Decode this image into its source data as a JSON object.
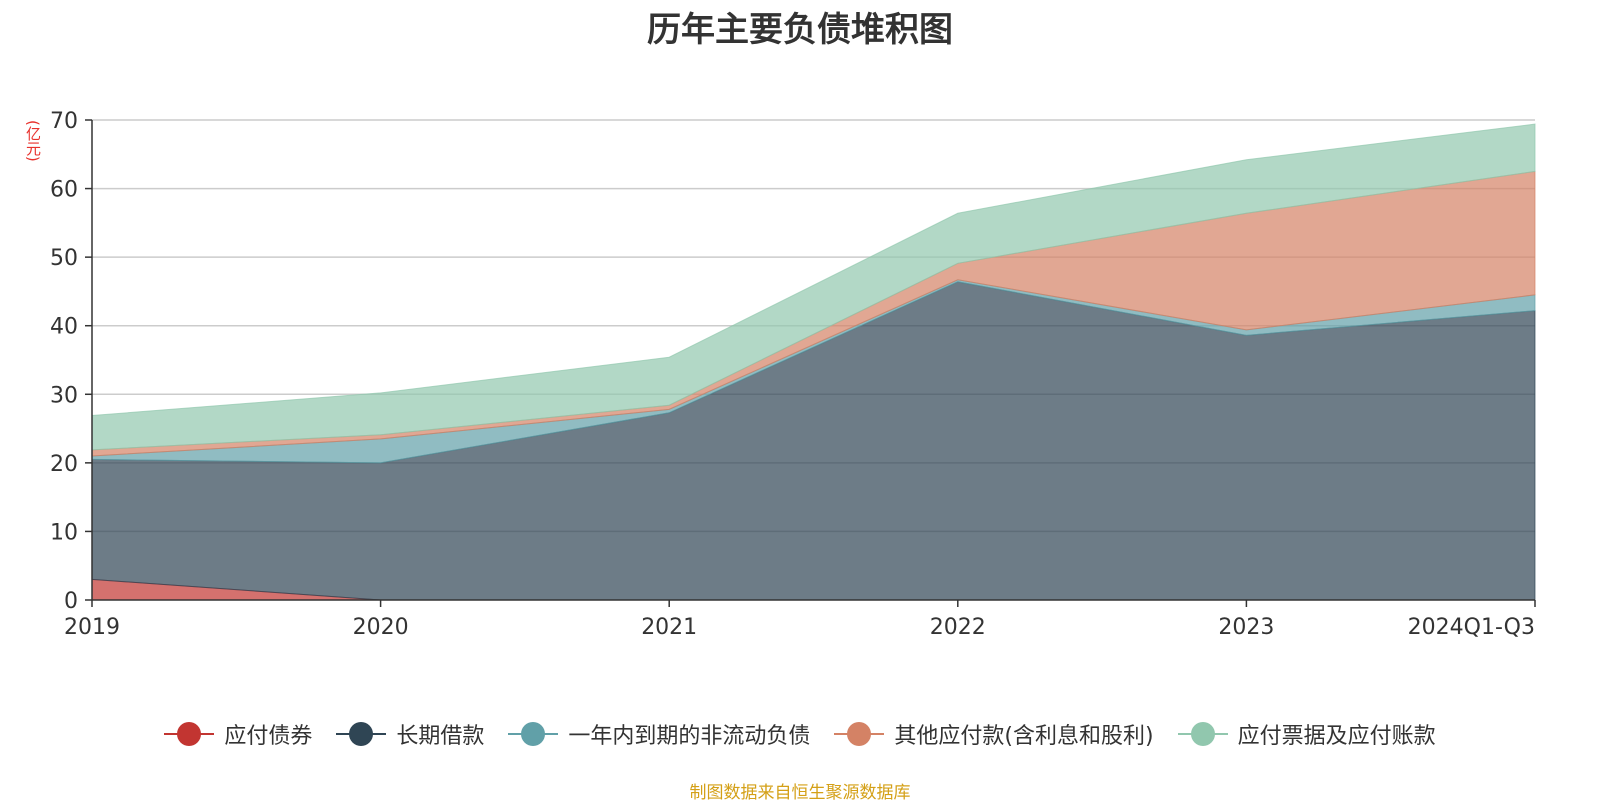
{
  "chart_data": {
    "type": "area",
    "stacked": true,
    "title": "历年主要负债堆积图",
    "unit_label": "(亿元)",
    "categories": [
      "2019",
      "2020",
      "2021",
      "2022",
      "2023",
      "2024Q1-Q3"
    ],
    "ylim": [
      0,
      70
    ],
    "yticks": [
      0,
      10,
      20,
      30,
      40,
      50,
      60,
      70
    ],
    "grid": true,
    "legend_position": "bottom",
    "series": [
      {
        "name": "应付债券",
        "color": "#c23531",
        "values": [
          3.0,
          0.0,
          0.0,
          0.0,
          0.0,
          0.0
        ]
      },
      {
        "name": "长期借款",
        "color": "#2f4554",
        "values": [
          17.5,
          20.0,
          27.3,
          46.4,
          38.6,
          42.2
        ]
      },
      {
        "name": "一年内到期的非流动负债",
        "color": "#61a0a8",
        "values": [
          0.5,
          3.5,
          0.5,
          0.3,
          0.8,
          2.3
        ]
      },
      {
        "name": "其他应付款(含利息和股利)",
        "color": "#d48265",
        "values": [
          0.9,
          0.6,
          0.6,
          2.4,
          17.0,
          18.0
        ]
      },
      {
        "name": "应付票据及应付账款",
        "color": "#91c7ae",
        "values": [
          5.0,
          6.1,
          7.0,
          7.3,
          7.8,
          6.9
        ]
      }
    ]
  },
  "source_note": "制图数据来自恒生聚源数据库"
}
